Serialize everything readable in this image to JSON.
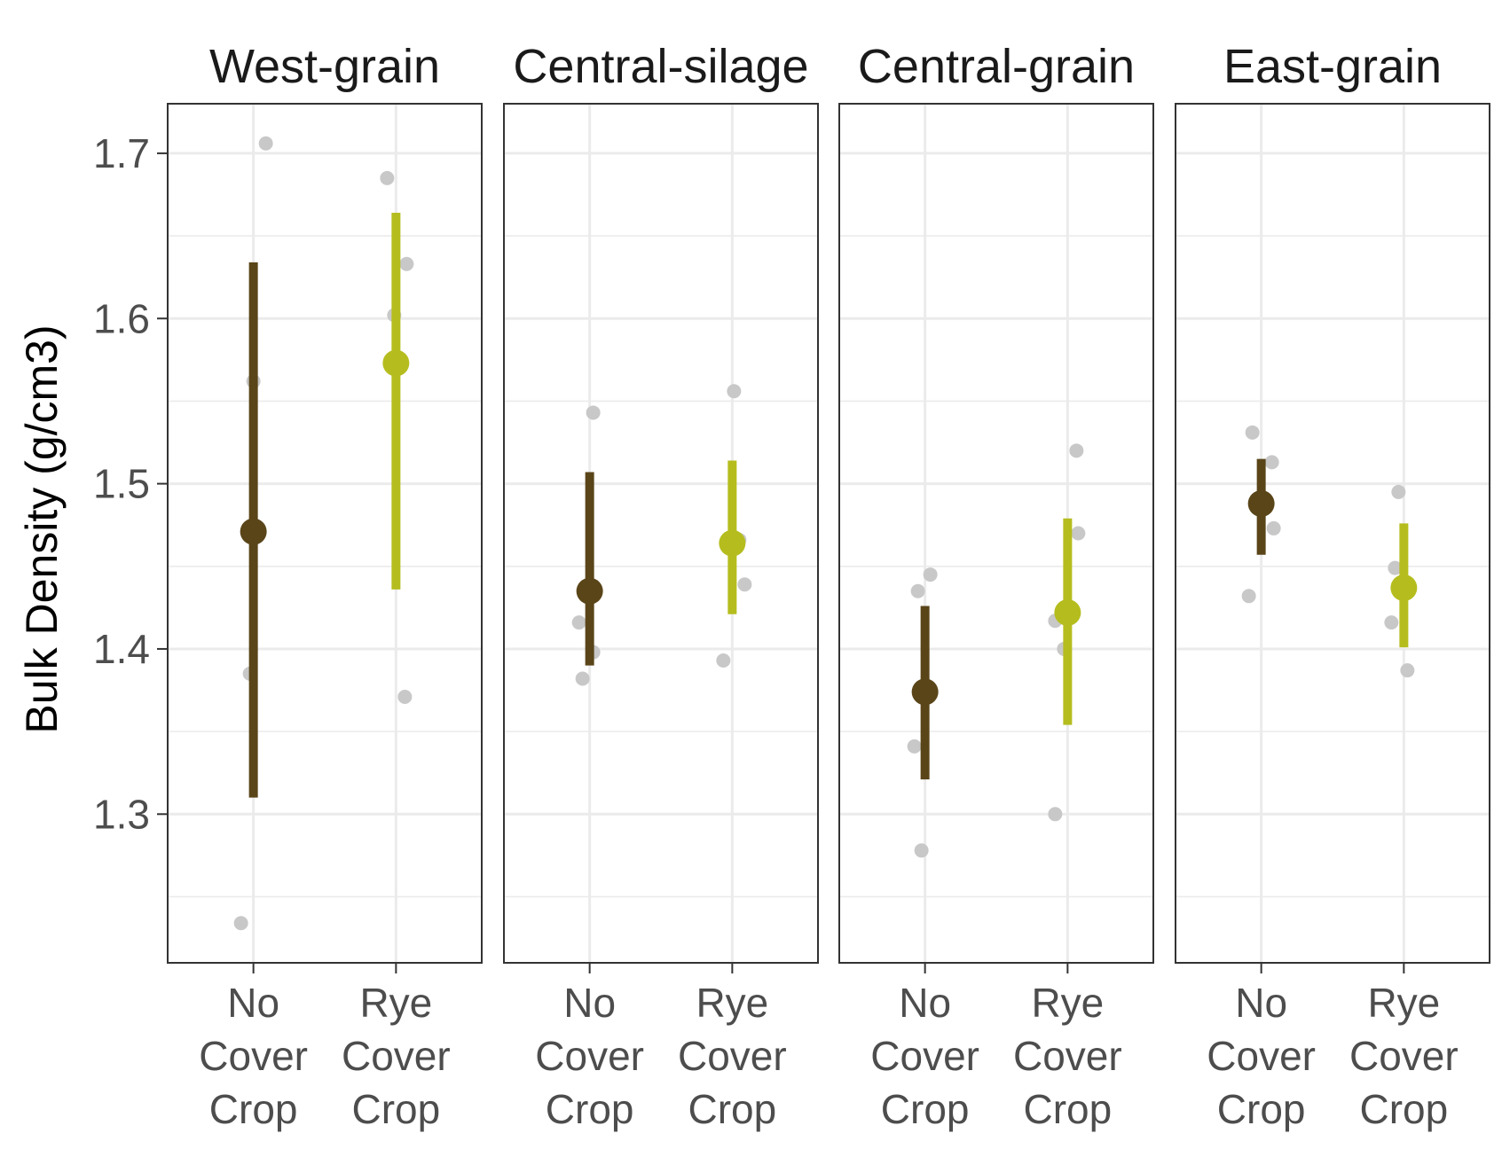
{
  "chart_data": {
    "type": "scatter",
    "ylabel": "Bulk Density (g/cm3)",
    "ylim": [
      1.21,
      1.73
    ],
    "y_ticks": [
      "1.3",
      "1.4",
      "1.5",
      "1.6",
      "1.7"
    ],
    "categories": [
      {
        "lines": [
          "No",
          "Cover",
          "Crop"
        ]
      },
      {
        "lines": [
          "Rye",
          "Cover",
          "Crop"
        ]
      }
    ],
    "colors": {
      "No Cover Crop": "#5a4519",
      "Rye Cover Crop": "#b5bd1e",
      "observations": "#c8c8c8"
    },
    "grid": true,
    "facets": [
      {
        "title": "West-grain",
        "groups": [
          {
            "mean": 1.471,
            "low": 1.31,
            "high": 1.634,
            "obs": [
              1.706,
              1.562,
              1.385,
              1.234
            ]
          },
          {
            "mean": 1.573,
            "low": 1.436,
            "high": 1.664,
            "obs": [
              1.685,
              1.633,
              1.602,
              1.371
            ]
          }
        ]
      },
      {
        "title": "Central-silage",
        "groups": [
          {
            "mean": 1.435,
            "low": 1.39,
            "high": 1.507,
            "obs": [
              1.543,
              1.416,
              1.398,
              1.382
            ]
          },
          {
            "mean": 1.464,
            "low": 1.421,
            "high": 1.514,
            "obs": [
              1.556,
              1.466,
              1.439,
              1.393
            ]
          }
        ]
      },
      {
        "title": "Central-grain",
        "groups": [
          {
            "mean": 1.374,
            "low": 1.321,
            "high": 1.426,
            "obs": [
              1.445,
              1.435,
              1.341,
              1.278
            ]
          },
          {
            "mean": 1.422,
            "low": 1.354,
            "high": 1.479,
            "obs": [
              1.52,
              1.47,
              1.417,
              1.4,
              1.3
            ]
          }
        ]
      },
      {
        "title": "East-grain",
        "groups": [
          {
            "mean": 1.488,
            "low": 1.457,
            "high": 1.515,
            "obs": [
              1.531,
              1.513,
              1.473,
              1.432
            ]
          },
          {
            "mean": 1.437,
            "low": 1.401,
            "high": 1.476,
            "obs": [
              1.495,
              1.449,
              1.416,
              1.387
            ]
          }
        ]
      }
    ]
  }
}
